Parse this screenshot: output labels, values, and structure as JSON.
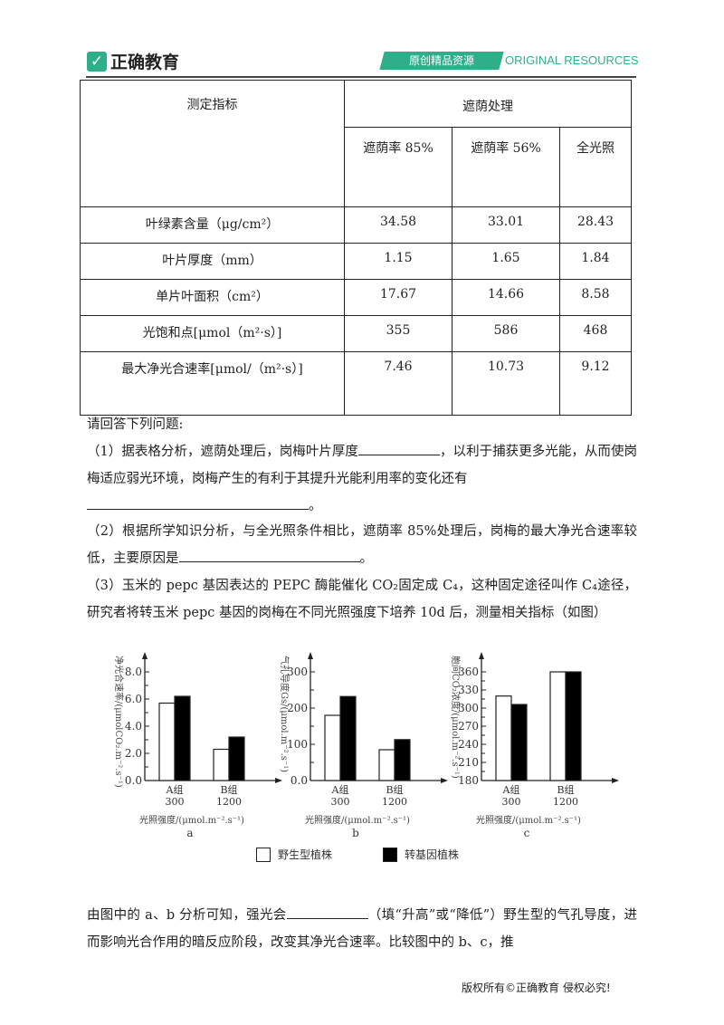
{
  "header": {
    "brand": "正确教育",
    "banner": "原创精品资源",
    "banner_en": "ORIGINAL RESOURCES",
    "brand_color": "#2fae8a"
  },
  "table": {
    "corner": "测定指标",
    "group": "遮荫处理",
    "columns": [
      "遮荫率 85%",
      "遮荫率 56%",
      "全光照"
    ],
    "rows": [
      {
        "label": "叶绿素含量（μg/cm²）",
        "values": [
          "34.58",
          "33.01",
          "28.43"
        ]
      },
      {
        "label": "叶片厚度（mm）",
        "values": [
          "1.15",
          "1.65",
          "1.84"
        ]
      },
      {
        "label": "单片叶面积（cm²）",
        "values": [
          "17.67",
          "14.66",
          "8.58"
        ]
      },
      {
        "label": "光饱和点[μmol（m²·s）]",
        "values": [
          "355",
          "586",
          "468"
        ]
      },
      {
        "label": "最大净光合速率[μmol/（m²·s）]",
        "values": [
          "7.46",
          "10.73",
          "9.12"
        ]
      }
    ]
  },
  "questions": {
    "intro": "请回答下列问题:",
    "q1a": "（1）据表格分析，遮荫处理后，岗梅叶片厚度",
    "q1b": "，以利于捕获更多光能，从而使岗梅适应弱光环境，岗梅产生的有利于其提升光能利用率的变化还有",
    "q1c": "。",
    "q2a": "（2）根据所学知识分析，与全光照条件相比，遮荫率 85%处理后，岗梅的最大净光合速率较低，主要原因是",
    "q2b": "。",
    "q3": "（3）玉米的 pepc 基因表达的 PEPC 酶能催化 CO₂固定成 C₄，这种固定途径叫作 C₄途径，研究者将转玉米 pepc 基因的岗梅在不同光照强度下培养 10d 后，测量相关指标（如图）",
    "q4a": "由图中的 a、b 分析可知，强光会",
    "q4b": "（填“升高”或“降低”）野生型的气孔导度，进而影响光合作用的暗反应阶段，改变其净光合速率。比较图中的 b、c，推"
  },
  "chart_data": [
    {
      "type": "bar",
      "id": "a",
      "ylabel": "净光合速率/(μmolCO₂.m⁻².s⁻¹)",
      "xlabel": "光照强度/(μmol.m⁻².s⁻¹)",
      "categories": [
        "A组 300",
        "B组 1200"
      ],
      "ylim": [
        0,
        8
      ],
      "yticks": [
        "0.0",
        "2.0",
        "4.0",
        "6.0",
        "8.0"
      ],
      "series": [
        {
          "name": "野生型植株",
          "values": [
            5.7,
            2.3
          ]
        },
        {
          "name": "转基因植株",
          "values": [
            6.2,
            3.2
          ]
        }
      ]
    },
    {
      "type": "bar",
      "id": "b",
      "ylabel": "气孔导度Gs/(μmol.m⁻².s⁻¹)",
      "xlabel": "光照强度/(μmol.m⁻².s⁻¹)",
      "categories": [
        "A组 300",
        "B组 1200"
      ],
      "ylim": [
        0,
        300
      ],
      "yticks": [
        "0.0",
        "100",
        "200",
        "300"
      ],
      "series": [
        {
          "name": "野生型植株",
          "values": [
            180,
            85
          ]
        },
        {
          "name": "转基因植株",
          "values": [
            232,
            113
          ]
        }
      ]
    },
    {
      "type": "bar",
      "id": "c",
      "ylabel": "胞间CO₂浓度/(μmol.m⁻².s⁻¹)",
      "xlabel": "光照强度/(μmol.m⁻².s⁻¹)",
      "categories": [
        "A组 300",
        "B组 1200"
      ],
      "ylim": [
        180,
        360
      ],
      "yticks": [
        "180",
        "210",
        "240",
        "270",
        "300",
        "330",
        "360"
      ],
      "series": [
        {
          "name": "野生型植株",
          "values": [
            320,
            360
          ]
        },
        {
          "name": "转基因植株",
          "values": [
            306,
            360
          ]
        }
      ]
    }
  ],
  "legend": {
    "wild": "野生型植株",
    "transgenic": "转基因植株"
  },
  "footer": "版权所有©正确教育  侵权必究!"
}
